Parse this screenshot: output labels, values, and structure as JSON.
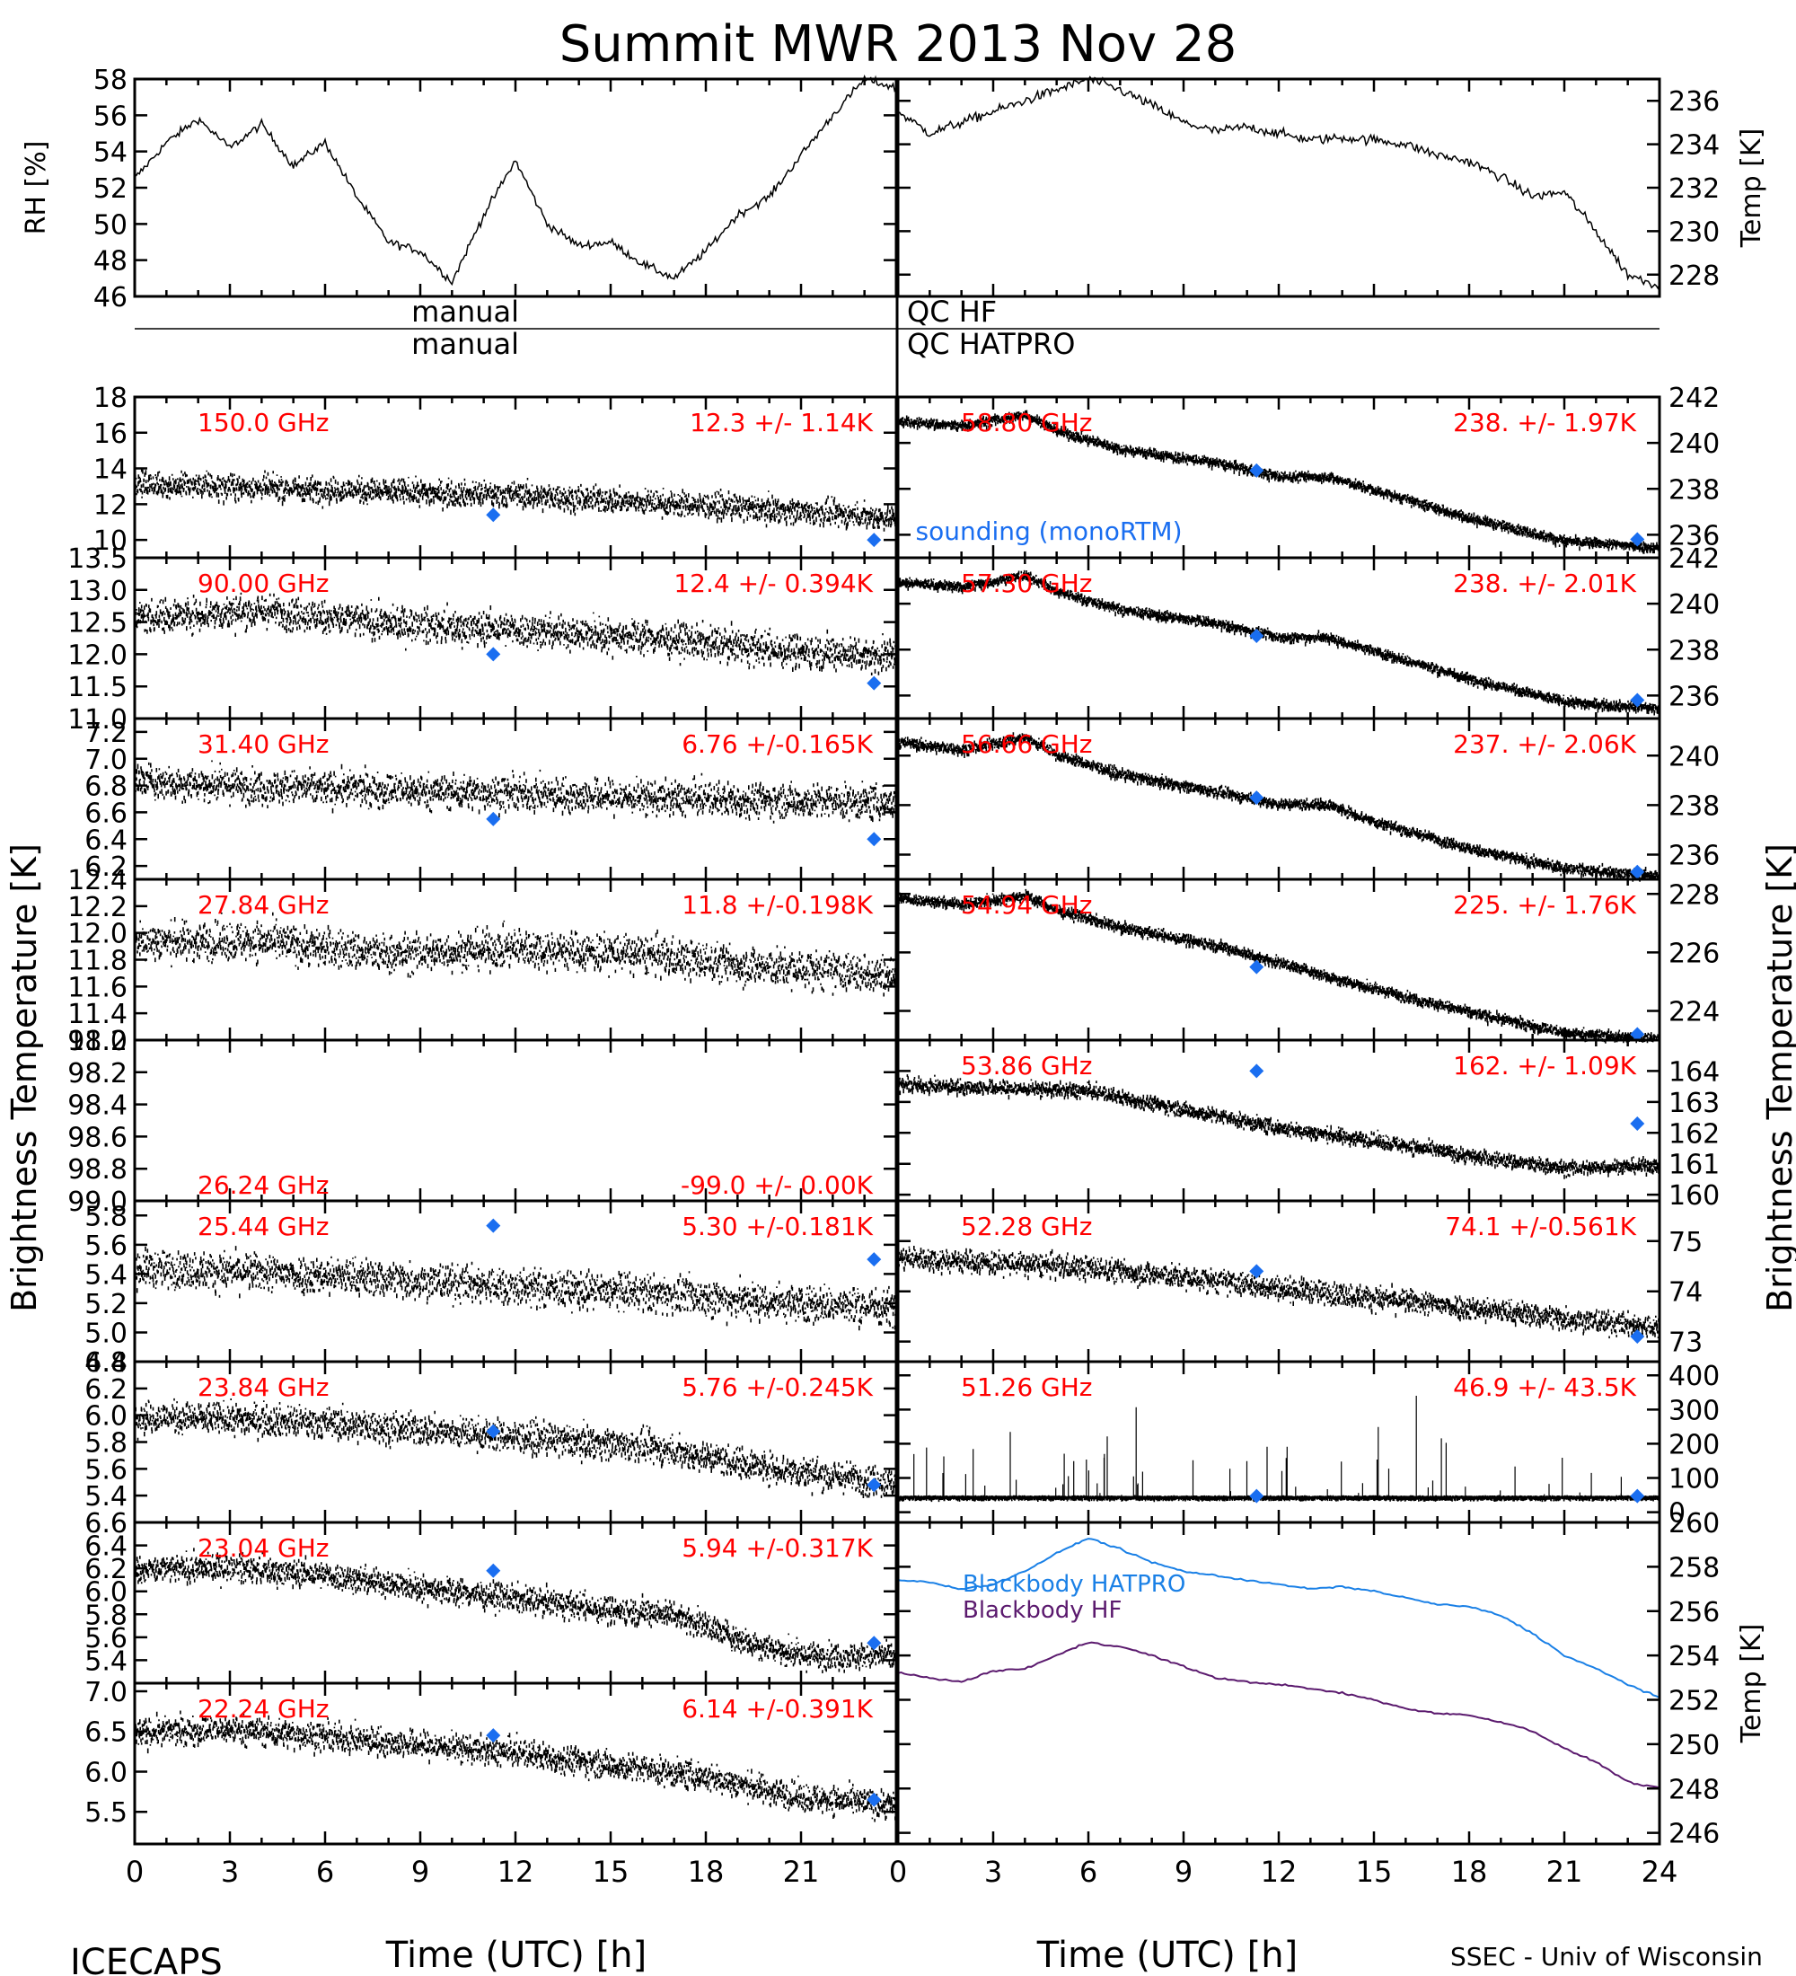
{
  "figure": {
    "title": "Summit MWR 2013 Nov 28",
    "footer_left": "ICECAPS",
    "footer_right": "SSEC - Univ of Wisconsin",
    "xlabel": "Time (UTC) [h]",
    "ylabel_left": "Brightness Temperature [K]",
    "ylabel_right": "Brightness Temperature [K]",
    "manual_hf": "manual",
    "qc_hf": "QC HF",
    "manual_hatpro": "manual",
    "qc_hatpro": "QC HATPRO",
    "sounding_label": "sounding (monoRTM)",
    "colors": {
      "trace": "#000000",
      "annotation": "#ff0000",
      "sounding": "#1a6ef0",
      "bb_hatpro": "#1a80e6",
      "bb_hf": "#5b1a6e"
    }
  },
  "chart_data": [
    {
      "id": "rh",
      "type": "line",
      "ylabel": "RH [%]",
      "ylim": [
        46,
        58
      ],
      "yticks": [
        46,
        48,
        50,
        52,
        54,
        56,
        58
      ],
      "xlim": [
        0,
        24
      ],
      "x": [
        0,
        1,
        2,
        3,
        4,
        5,
        6,
        7,
        8,
        9,
        10,
        11,
        12,
        13,
        14,
        15,
        16,
        17,
        18,
        19,
        20,
        21,
        22,
        23,
        24
      ],
      "values": [
        52.5,
        54.5,
        55.8,
        54.2,
        55.5,
        53.2,
        54.5,
        51.5,
        49,
        48.5,
        46.8,
        50.5,
        53.5,
        50,
        48.8,
        49,
        47.8,
        47,
        48.5,
        50.5,
        51.5,
        53.8,
        56,
        58,
        57.5
      ]
    },
    {
      "id": "temp",
      "type": "line",
      "ylabel": "Temp [K]",
      "ylim": [
        227,
        237
      ],
      "yticks": [
        228,
        230,
        232,
        234,
        236
      ],
      "xlim": [
        0,
        24
      ],
      "x": [
        0,
        1,
        2,
        3,
        4,
        5,
        6,
        7,
        8,
        9,
        10,
        11,
        12,
        13,
        14,
        15,
        16,
        17,
        18,
        19,
        20,
        21,
        22,
        23,
        24
      ],
      "values": [
        235.5,
        234.5,
        235,
        235.5,
        236,
        236.5,
        237,
        236.5,
        235.8,
        235,
        234.6,
        234.8,
        234.5,
        234.2,
        234.3,
        234.2,
        234,
        233.5,
        233.2,
        232.5,
        231.6,
        231.8,
        230,
        228,
        227.5
      ]
    },
    {
      "id": "150",
      "type": "scatter",
      "freq": "150.0 GHz",
      "stat": "12.3 +/- 1.14K",
      "ylim": [
        9,
        18
      ],
      "yticks": [
        10,
        12,
        14,
        16,
        18
      ],
      "xlim": [
        0,
        24
      ],
      "x": [
        0,
        4,
        8,
        12,
        16,
        20,
        24
      ],
      "values": [
        13.2,
        13.0,
        12.8,
        12.6,
        12.2,
        11.8,
        11.3
      ],
      "noise": 1.2,
      "sounding": [
        {
          "x": 11.3,
          "y": 11.4
        },
        {
          "x": 23.3,
          "y": 10.0
        }
      ]
    },
    {
      "id": "238a",
      "type": "scatter",
      "freq": "58.80 GHz",
      "stat": "238. +/- 1.97K",
      "ylim": [
        235,
        242
      ],
      "yticks": [
        236,
        238,
        240,
        242
      ],
      "xlim": [
        0,
        24
      ],
      "x": [
        0,
        2,
        4,
        5,
        7,
        10,
        12,
        13.5,
        15,
        18,
        21,
        24
      ],
      "values": [
        241,
        240.8,
        241.3,
        240.6,
        239.8,
        239.2,
        238.6,
        238.6,
        238,
        236.8,
        235.8,
        235.5
      ],
      "noise": 0.35,
      "sounding": [
        {
          "x": 11.3,
          "y": 238.8
        },
        {
          "x": 23.3,
          "y": 235.8
        }
      ]
    },
    {
      "id": "90",
      "type": "scatter",
      "freq": "90.00 GHz",
      "stat": "12.4 +/- 0.394K",
      "ylim": [
        11,
        13.5
      ],
      "yticks": [
        11.0,
        11.5,
        12.0,
        12.5,
        13.0,
        13.5
      ],
      "xlim": [
        0,
        24
      ],
      "x": [
        0,
        4,
        8,
        12,
        16,
        20,
        24
      ],
      "values": [
        12.6,
        12.7,
        12.5,
        12.4,
        12.3,
        12.1,
        12.0
      ],
      "noise": 0.45,
      "sounding": [
        {
          "x": 11.3,
          "y": 12.0
        },
        {
          "x": 23.3,
          "y": 11.55
        }
      ]
    },
    {
      "id": "238b",
      "type": "scatter",
      "freq": "57.30 GHz",
      "stat": "238. +/- 2.01K",
      "ylim": [
        235,
        242
      ],
      "yticks": [
        236,
        238,
        240,
        242
      ],
      "xlim": [
        0,
        24
      ],
      "x": [
        0,
        2,
        4,
        5,
        7,
        10,
        12,
        13.5,
        15,
        18,
        21,
        24
      ],
      "values": [
        241,
        240.8,
        241.3,
        240.6,
        239.8,
        239.2,
        238.6,
        238.6,
        238,
        236.8,
        235.8,
        235.5
      ],
      "noise": 0.35,
      "sounding": [
        {
          "x": 11.3,
          "y": 238.6
        },
        {
          "x": 23.3,
          "y": 235.8
        }
      ]
    },
    {
      "id": "31",
      "type": "scatter",
      "freq": "31.40 GHz",
      "stat": "6.76 +/-0.165K",
      "ylim": [
        6.1,
        7.3
      ],
      "yticks": [
        6.2,
        6.4,
        6.6,
        6.8,
        7.0,
        7.2
      ],
      "xlim": [
        0,
        24
      ],
      "x": [
        0,
        4,
        8,
        12,
        16,
        20,
        24
      ],
      "values": [
        6.85,
        6.8,
        6.78,
        6.75,
        6.72,
        6.7,
        6.68
      ],
      "noise": 0.22,
      "sounding": [
        {
          "x": 11.3,
          "y": 6.55
        },
        {
          "x": 23.3,
          "y": 6.4
        }
      ]
    },
    {
      "id": "237",
      "type": "scatter",
      "freq": "56.66 GHz",
      "stat": "237. +/- 2.06K",
      "ylim": [
        235,
        241.5
      ],
      "yticks": [
        236,
        238,
        240
      ],
      "xlim": [
        0,
        24
      ],
      "x": [
        0,
        2,
        4,
        5,
        7,
        10,
        12,
        13.5,
        15,
        18,
        21,
        24
      ],
      "values": [
        240.6,
        240.3,
        240.8,
        240.1,
        239.3,
        238.6,
        238.1,
        238.1,
        237.4,
        236.3,
        235.5,
        235.2
      ],
      "noise": 0.35,
      "sounding": [
        {
          "x": 11.3,
          "y": 238.3
        },
        {
          "x": 23.3,
          "y": 235.3
        }
      ]
    },
    {
      "id": "27",
      "type": "scatter",
      "freq": "27.84 GHz",
      "stat": "11.8 +/-0.198K",
      "ylim": [
        11.2,
        12.4
      ],
      "yticks": [
        11.2,
        11.4,
        11.6,
        11.8,
        12.0,
        12.2,
        12.4
      ],
      "xlim": [
        0,
        24
      ],
      "x": [
        0,
        4,
        8,
        12,
        16,
        20,
        24
      ],
      "values": [
        11.95,
        11.95,
        11.85,
        11.9,
        11.85,
        11.75,
        11.7
      ],
      "noise": 0.25,
      "sounding": []
    },
    {
      "id": "225",
      "type": "scatter",
      "freq": "54.94 GHz",
      "stat": "225. +/- 1.76K",
      "ylim": [
        223,
        228.5
      ],
      "yticks": [
        224,
        226,
        228
      ],
      "xlim": [
        0,
        24
      ],
      "x": [
        0,
        2,
        4,
        5,
        7,
        10,
        12,
        15,
        18,
        21,
        24
      ],
      "values": [
        227.9,
        227.7,
        228,
        227.5,
        226.9,
        226.3,
        225.7,
        224.8,
        224,
        223.3,
        223.1
      ],
      "noise": 0.3,
      "sounding": [
        {
          "x": 11.3,
          "y": 225.5
        },
        {
          "x": 23.3,
          "y": 223.2
        }
      ]
    },
    {
      "id": "26",
      "type": "empty",
      "freq": "26.24 GHz",
      "stat": "-99.0 +/- 0.00K",
      "ylim": [
        99.0,
        98.0
      ],
      "yticks": [
        98.0,
        98.2,
        98.4,
        98.6,
        98.8,
        99.0
      ],
      "xlim": [
        0,
        24
      ],
      "x": [],
      "values": [],
      "noise": 0,
      "sounding": []
    },
    {
      "id": "162",
      "type": "scatter",
      "freq": "53.86 GHz",
      "stat": "162. +/- 1.09K",
      "ylim": [
        159.8,
        165
      ],
      "yticks": [
        160,
        161,
        162,
        163,
        164
      ],
      "xlim": [
        0,
        24
      ],
      "x": [
        0,
        3,
        6,
        9,
        12,
        15,
        18,
        21,
        24
      ],
      "values": [
        163.6,
        163.5,
        163.4,
        162.8,
        162.2,
        161.8,
        161.3,
        160.9,
        161
      ],
      "noise": 0.4,
      "sounding": [
        {
          "x": 11.3,
          "y": 164.0
        },
        {
          "x": 23.3,
          "y": 162.3
        }
      ]
    },
    {
      "id": "25",
      "type": "scatter",
      "freq": "25.44 GHz",
      "stat": "5.30 +/-0.181K",
      "ylim": [
        4.8,
        5.9
      ],
      "yticks": [
        4.8,
        5.0,
        5.2,
        5.4,
        5.6,
        5.8
      ],
      "xlim": [
        0,
        24
      ],
      "x": [
        0,
        4,
        8,
        12,
        16,
        20,
        24
      ],
      "values": [
        5.45,
        5.42,
        5.38,
        5.32,
        5.28,
        5.22,
        5.18
      ],
      "noise": 0.22,
      "sounding": [
        {
          "x": 11.3,
          "y": 5.73
        },
        {
          "x": 23.3,
          "y": 5.5
        }
      ]
    },
    {
      "id": "74",
      "type": "scatter",
      "freq": "52.28 GHz",
      "stat": "74.1 +/-0.561K",
      "ylim": [
        72.6,
        75.8
      ],
      "yticks": [
        73,
        74,
        75
      ],
      "xlim": [
        0,
        24
      ],
      "x": [
        0,
        3,
        6,
        9,
        12,
        15,
        18,
        21,
        24
      ],
      "values": [
        74.7,
        74.6,
        74.5,
        74.3,
        74.1,
        73.9,
        73.7,
        73.5,
        73.3
      ],
      "noise": 0.4,
      "sounding": [
        {
          "x": 11.3,
          "y": 74.4
        },
        {
          "x": 23.3,
          "y": 73.1
        }
      ]
    },
    {
      "id": "23a",
      "type": "scatter",
      "freq": "23.84 GHz",
      "stat": "5.76 +/-0.245K",
      "ylim": [
        5.2,
        6.4
      ],
      "yticks": [
        5.4,
        5.6,
        5.8,
        6.0,
        6.2,
        6.4
      ],
      "xlim": [
        0,
        24
      ],
      "x": [
        0,
        4,
        8,
        12,
        16,
        20,
        24
      ],
      "values": [
        6.0,
        5.98,
        5.92,
        5.85,
        5.78,
        5.62,
        5.5
      ],
      "noise": 0.2,
      "sounding": [
        {
          "x": 11.3,
          "y": 5.88
        },
        {
          "x": 23.3,
          "y": 5.48
        }
      ]
    },
    {
      "id": "51",
      "type": "scatter",
      "freq": "51.26 GHz",
      "stat": "46.9 +/- 43.5K",
      "ylim": [
        -30,
        440
      ],
      "yticks": [
        0,
        100,
        200,
        300,
        400
      ],
      "xlim": [
        0,
        24
      ],
      "x": [
        0,
        24
      ],
      "values": [
        47,
        47
      ],
      "noise": 4,
      "sounding": [
        {
          "x": 11.3,
          "y": 47
        },
        {
          "x": 23.3,
          "y": 47
        }
      ]
    },
    {
      "id": "23b",
      "type": "scatter",
      "freq": "23.04 GHz",
      "stat": "5.94 +/-0.317K",
      "ylim": [
        5.2,
        6.6
      ],
      "yticks": [
        5.4,
        5.6,
        5.8,
        6.0,
        6.2,
        6.4,
        6.6
      ],
      "xlim": [
        0,
        24
      ],
      "x": [
        0,
        3,
        6,
        9,
        12,
        15,
        17,
        19,
        21,
        24
      ],
      "values": [
        6.2,
        6.22,
        6.15,
        6.05,
        5.95,
        5.85,
        5.82,
        5.6,
        5.45,
        5.45
      ],
      "noise": 0.2,
      "sounding": [
        {
          "x": 11.3,
          "y": 6.18
        },
        {
          "x": 23.3,
          "y": 5.55
        }
      ]
    },
    {
      "id": "bb",
      "type": "line",
      "ylabel": "Temp [K]",
      "ylim": [
        245.5,
        260
      ],
      "yticks": [
        246,
        248,
        250,
        252,
        254,
        256,
        258,
        260
      ],
      "xlim": [
        0,
        24
      ],
      "series": [
        {
          "name": "Blackbody HATPRO",
          "x": [
            0,
            1,
            2,
            3,
            4,
            5,
            6,
            7,
            8,
            9,
            10,
            11,
            12,
            13,
            14,
            15,
            16,
            17,
            18,
            19,
            20,
            21,
            22,
            23,
            24
          ],
          "values": [
            257.4,
            257.3,
            257.0,
            257.2,
            257.8,
            258.6,
            259.3,
            258.8,
            258.2,
            257.8,
            257.6,
            257.4,
            257.2,
            257.0,
            257.1,
            256.9,
            256.6,
            256.3,
            256.2,
            255.8,
            255.0,
            254.0,
            253.4,
            252.7,
            252.1
          ]
        },
        {
          "name": "Blackbody HF",
          "x": [
            0,
            1,
            2,
            3,
            4,
            5,
            6,
            7,
            8,
            9,
            10,
            11,
            12,
            13,
            14,
            15,
            16,
            17,
            18,
            19,
            20,
            21,
            22,
            23,
            24
          ],
          "values": [
            253.2,
            253.0,
            252.8,
            253.3,
            253.4,
            254.0,
            254.6,
            254.4,
            254.0,
            253.5,
            253.0,
            252.8,
            252.7,
            252.5,
            252.3,
            252.0,
            251.6,
            251.4,
            251.3,
            251.0,
            250.6,
            249.8,
            249.2,
            248.3,
            248.0
          ]
        }
      ]
    },
    {
      "id": "22",
      "type": "scatter",
      "freq": "22.24 GHz",
      "stat": "6.14 +/-0.391K",
      "ylim": [
        5.1,
        7.1
      ],
      "yticks": [
        5.5,
        6.0,
        6.5,
        7.0
      ],
      "xlim": [
        0,
        24
      ],
      "x": [
        0,
        3,
        6,
        9,
        12,
        15,
        18,
        21,
        24
      ],
      "values": [
        6.5,
        6.55,
        6.45,
        6.35,
        6.25,
        6.1,
        5.95,
        5.7,
        5.6
      ],
      "noise": 0.3,
      "sounding": [
        {
          "x": 11.3,
          "y": 6.45
        },
        {
          "x": 23.3,
          "y": 5.65
        }
      ]
    }
  ],
  "xticks": [
    "0",
    "3",
    "6",
    "9",
    "12",
    "15",
    "18",
    "21"
  ],
  "xticks_right": [
    "0",
    "3",
    "6",
    "9",
    "12",
    "15",
    "18",
    "21",
    "24"
  ]
}
